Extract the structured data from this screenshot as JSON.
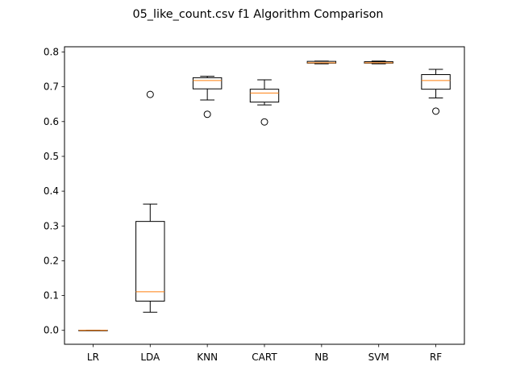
{
  "chart_data": {
    "type": "box",
    "title": "05_like_count.csv f1 Algorithm Comparison",
    "xlabel": "",
    "ylabel": "",
    "ylim": [
      -0.04,
      0.815
    ],
    "yticks": [
      "0.0",
      "0.1",
      "0.2",
      "0.3",
      "0.4",
      "0.5",
      "0.6",
      "0.7",
      "0.8"
    ],
    "ytick_values": [
      0.0,
      0.1,
      0.2,
      0.3,
      0.4,
      0.5,
      0.6,
      0.7,
      0.8
    ],
    "grid": false,
    "box_color": "#000000",
    "median_color": "#ff7f0e",
    "categories": [
      "LR",
      "LDA",
      "KNN",
      "CART",
      "NB",
      "SVM",
      "RF"
    ],
    "boxes": [
      {
        "label": "LR",
        "whislo": 0.0,
        "q1": 0.0,
        "med": 0.0,
        "q3": 0.0,
        "whishi": 0.0,
        "fliers": []
      },
      {
        "label": "LDA",
        "whislo": 0.052,
        "q1": 0.084,
        "med": 0.111,
        "q3": 0.313,
        "whishi": 0.363,
        "fliers": [
          0.678
        ]
      },
      {
        "label": "KNN",
        "whislo": 0.662,
        "q1": 0.694,
        "med": 0.718,
        "q3": 0.726,
        "whishi": 0.73,
        "fliers": [
          0.621
        ]
      },
      {
        "label": "CART",
        "whislo": 0.648,
        "q1": 0.656,
        "med": 0.682,
        "q3": 0.693,
        "whishi": 0.72,
        "fliers": [
          0.599
        ]
      },
      {
        "label": "NB",
        "whislo": 0.766,
        "q1": 0.768,
        "med": 0.769,
        "q3": 0.773,
        "whishi": 0.774,
        "fliers": []
      },
      {
        "label": "SVM",
        "whislo": 0.766,
        "q1": 0.768,
        "med": 0.769,
        "q3": 0.772,
        "whishi": 0.774,
        "fliers": []
      },
      {
        "label": "RF",
        "whislo": 0.668,
        "q1": 0.693,
        "med": 0.718,
        "q3": 0.735,
        "whishi": 0.75,
        "fliers": [
          0.63
        ]
      }
    ]
  }
}
